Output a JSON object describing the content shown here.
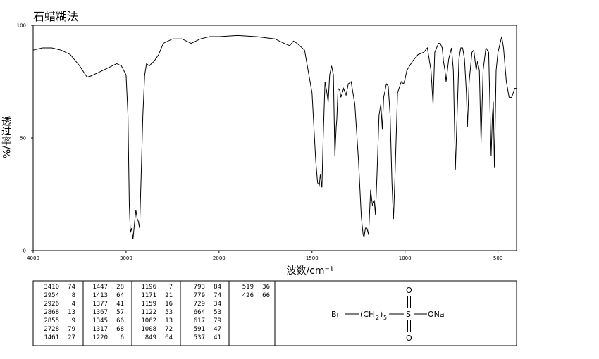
{
  "chart_data": {
    "type": "line",
    "title": "石蜡糊法",
    "x_label": "波数/cm⁻¹",
    "y_label": "透过率/%",
    "xlim": [
      4000,
      400
    ],
    "ylim": [
      0,
      100
    ],
    "xticks": [
      4000,
      3000,
      2000,
      1500,
      1000,
      500
    ],
    "yticks": [
      0,
      50,
      100
    ],
    "x_scale": {
      "break": 2000,
      "factor": 2
    },
    "color": "#000000",
    "x": [
      4000,
      3900,
      3800,
      3700,
      3600,
      3500,
      3420,
      3380,
      3300,
      3200,
      3100,
      3050,
      3000,
      2980,
      2965,
      2954,
      2940,
      2926,
      2910,
      2895,
      2880,
      2868,
      2855,
      2840,
      2820,
      2800,
      2780,
      2750,
      2728,
      2700,
      2650,
      2600,
      2500,
      2400,
      2300,
      2200,
      2100,
      2000,
      1900,
      1800,
      1700,
      1650,
      1620,
      1600,
      1580,
      1540,
      1500,
      1480,
      1470,
      1461,
      1455,
      1447,
      1440,
      1430,
      1420,
      1413,
      1405,
      1395,
      1385,
      1377,
      1370,
      1367,
      1360,
      1350,
      1345,
      1330,
      1317,
      1305,
      1290,
      1270,
      1250,
      1235,
      1225,
      1220,
      1213,
      1205,
      1196,
      1185,
      1175,
      1171,
      1165,
      1159,
      1150,
      1140,
      1130,
      1122,
      1115,
      1100,
      1090,
      1080,
      1070,
      1062,
      1055,
      1040,
      1020,
      1008,
      1000,
      990,
      960,
      930,
      900,
      880,
      860,
      849,
      840,
      820,
      810,
      800,
      793,
      785,
      779,
      765,
      750,
      740,
      729,
      720,
      710,
      700,
      690,
      680,
      670,
      664,
      655,
      640,
      630,
      617,
      610,
      600,
      591,
      580,
      565,
      550,
      537,
      530,
      525,
      519,
      510,
      500,
      480,
      470,
      455,
      440,
      426,
      410,
      400
    ],
    "values": [
      89,
      90,
      90,
      89,
      87,
      82,
      77,
      77.5,
      79,
      81,
      83,
      82,
      78,
      60,
      20,
      8,
      10,
      5,
      12,
      18,
      14,
      13,
      10,
      30,
      60,
      78,
      83,
      82,
      83,
      84,
      87,
      92,
      94,
      94,
      92,
      94,
      95,
      95,
      95.5,
      95,
      94,
      92,
      91,
      93,
      92,
      89,
      70,
      40,
      30,
      29,
      34,
      28,
      50,
      75,
      70,
      66,
      78,
      82,
      78,
      42,
      55,
      58,
      72,
      71,
      68,
      72,
      69,
      74,
      75,
      65,
      40,
      15,
      7,
      6,
      10,
      10,
      7,
      27,
      20,
      21,
      22,
      16,
      35,
      60,
      65,
      54,
      68,
      74,
      73,
      60,
      30,
      14,
      30,
      70,
      75,
      74,
      76,
      80,
      84,
      87,
      88,
      90,
      80,
      65,
      88,
      92,
      92,
      90,
      84,
      80,
      75,
      85,
      90,
      80,
      36,
      60,
      85,
      90,
      90,
      85,
      70,
      55,
      75,
      88,
      89,
      80,
      84,
      80,
      48,
      80,
      90,
      88,
      42,
      60,
      66,
      37,
      80,
      88,
      95,
      90,
      75,
      68,
      68,
      72,
      72
    ]
  },
  "peak_table": [
    [
      3410,
      74
    ],
    [
      2954,
      8
    ],
    [
      2926,
      4
    ],
    [
      2868,
      13
    ],
    [
      2855,
      9
    ],
    [
      2728,
      79
    ],
    [
      1461,
      27
    ],
    [
      1447,
      28
    ],
    [
      1413,
      64
    ],
    [
      1377,
      41
    ],
    [
      1367,
      57
    ],
    [
      1345,
      66
    ],
    [
      1317,
      68
    ],
    [
      1220,
      6
    ],
    [
      1196,
      7
    ],
    [
      1171,
      21
    ],
    [
      1159,
      16
    ],
    [
      1122,
      53
    ],
    [
      1062,
      13
    ],
    [
      1008,
      72
    ],
    [
      849,
      64
    ],
    [
      793,
      84
    ],
    [
      779,
      74
    ],
    [
      729,
      34
    ],
    [
      664,
      53
    ],
    [
      617,
      79
    ],
    [
      591,
      47
    ],
    [
      537,
      41
    ],
    [
      519,
      36
    ],
    [
      426,
      66
    ]
  ],
  "structure": {
    "labels": [
      "Br",
      "(CH",
      "2",
      ")",
      "5",
      "S",
      "O",
      "O",
      "ONa"
    ]
  }
}
